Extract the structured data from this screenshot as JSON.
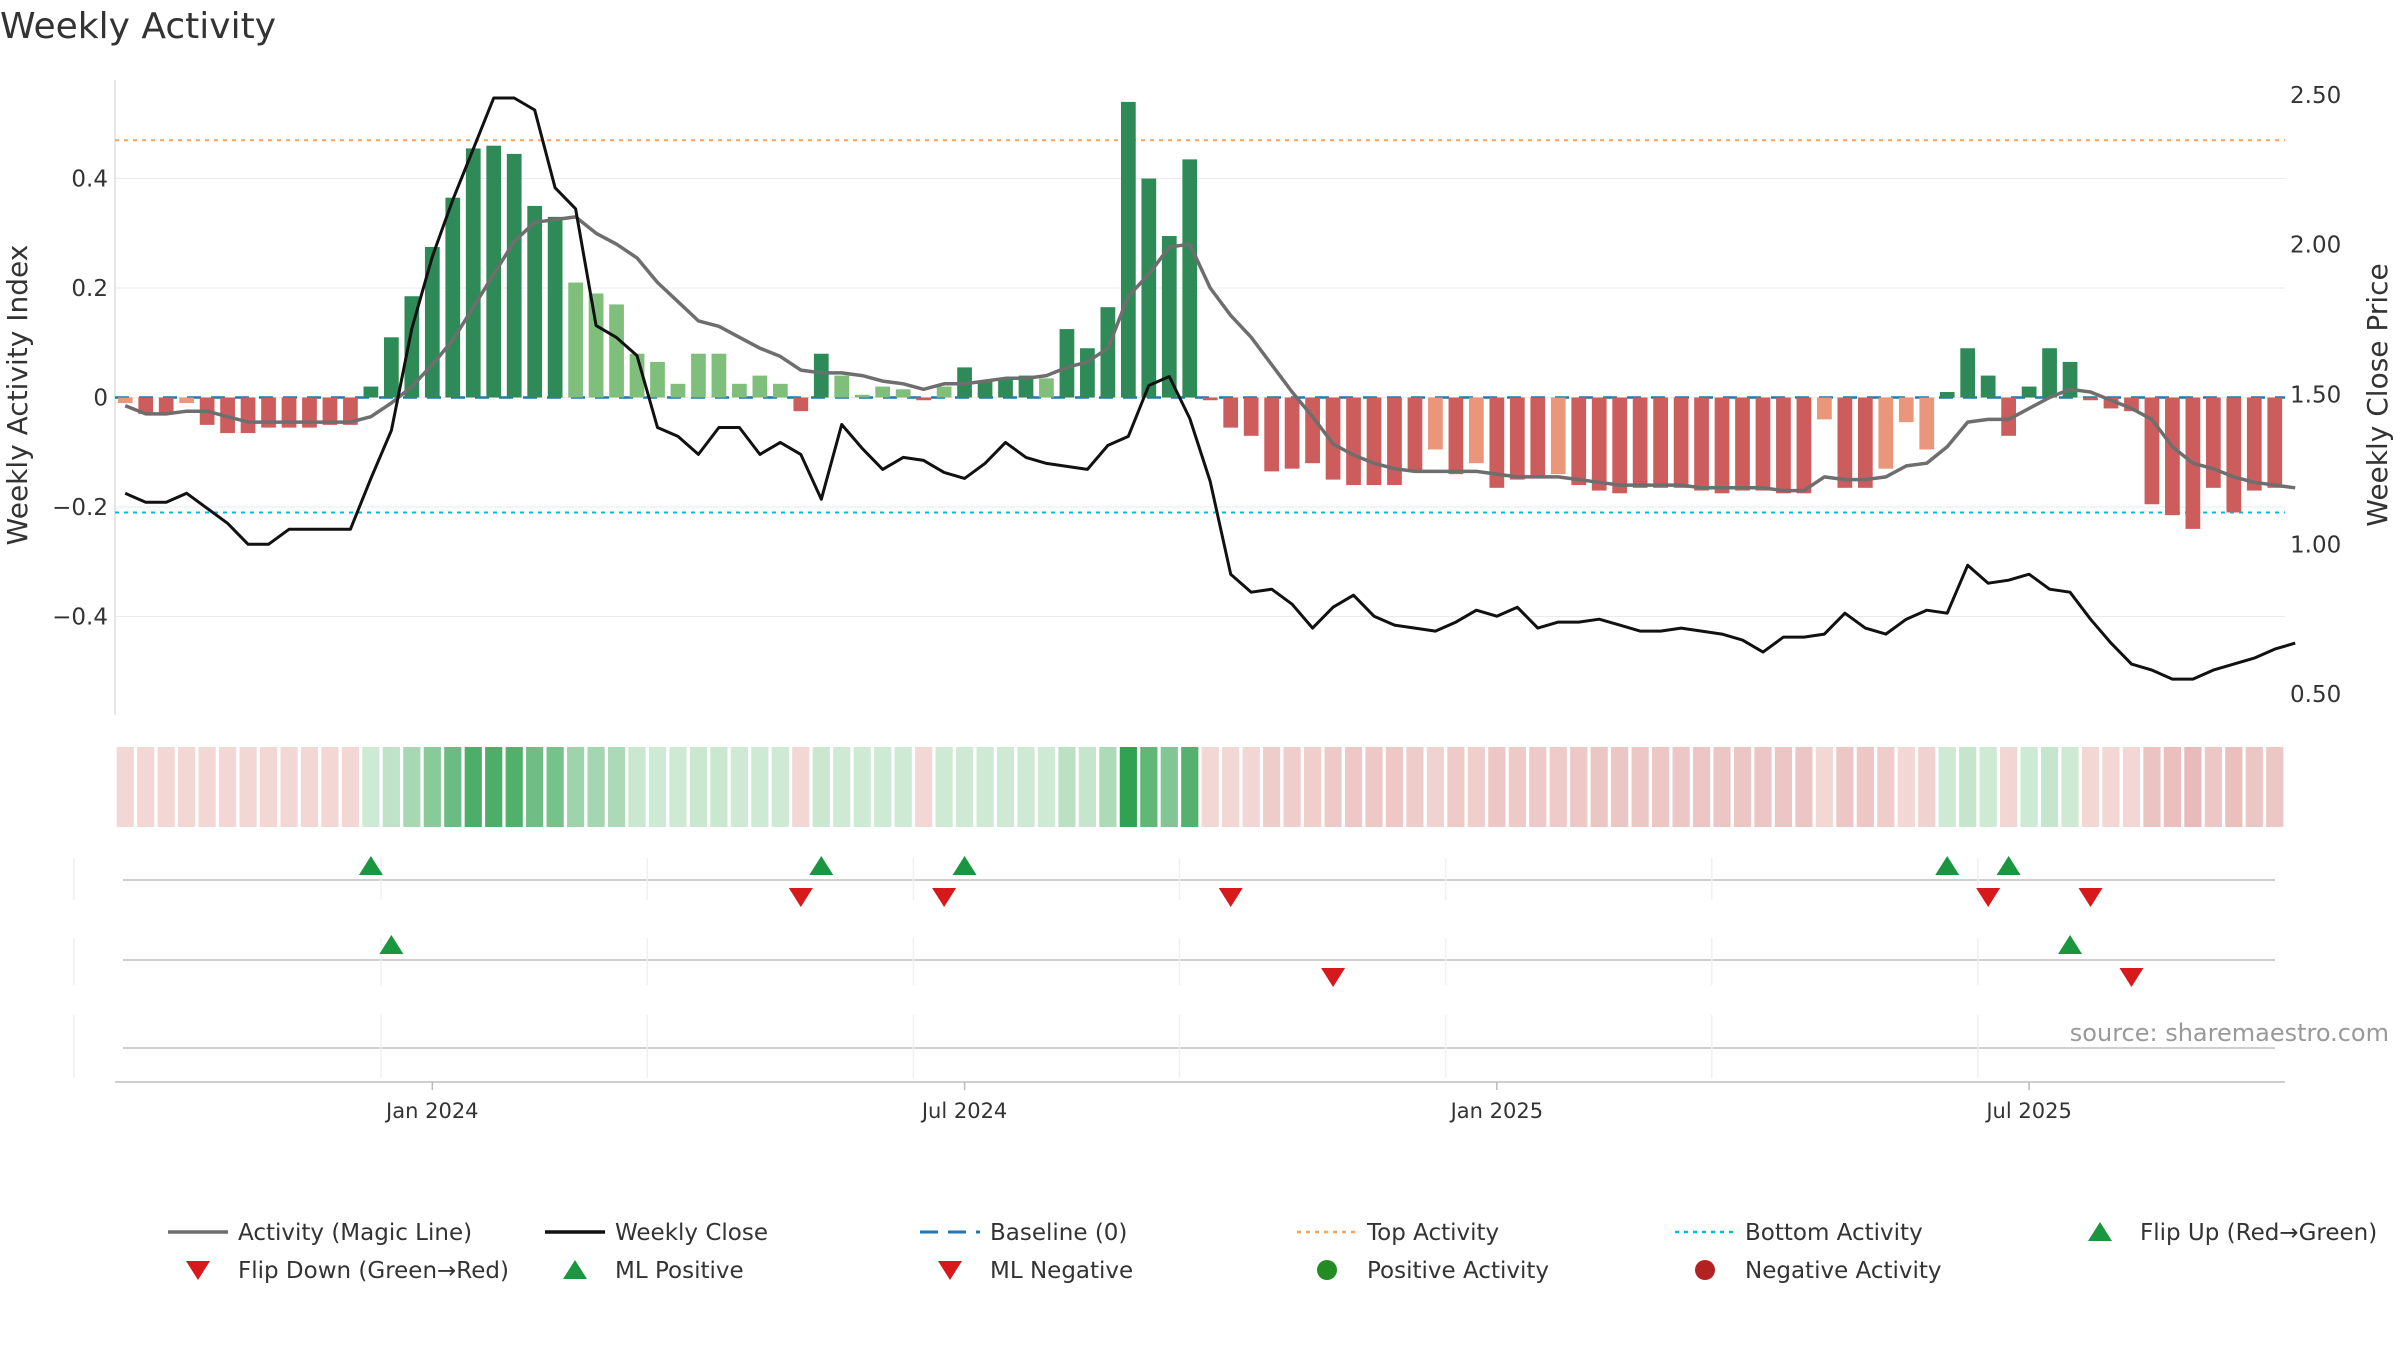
{
  "title": "Weekly Activity",
  "source": "source: sharemaestro.com",
  "colors": {
    "dark_green": "#2e8b57",
    "light_green": "#7fbf7b",
    "dark_red": "#cd5c5c",
    "light_red": "#e9967a",
    "magic_line": "#6e6e6e",
    "close": "#111111",
    "baseline": "#1f77b4",
    "top": "#f4a460",
    "bottom": "#00bcd4",
    "marker_green": "#1a9641",
    "marker_red": "#d7191c"
  },
  "chart_data": {
    "type": "bar",
    "title": "Weekly Activity",
    "ylabel": "Weekly Activity Index",
    "y2label": "Weekly Close Price",
    "ylim": [
      -0.58,
      0.58
    ],
    "y2lim": [
      0.43,
      2.55
    ],
    "yticks": [
      {
        "value": 0.4,
        "label": "0.4"
      },
      {
        "value": 0.2,
        "label": "0.2"
      },
      {
        "value": 0,
        "label": "0"
      },
      {
        "value": -0.2,
        "label": "−0.2"
      },
      {
        "value": -0.4,
        "label": "−0.4"
      }
    ],
    "y2ticks": [
      {
        "value": 2.5,
        "label": "2.50"
      },
      {
        "value": 2.0,
        "label": "2.00"
      },
      {
        "value": 1.5,
        "label": "1.50"
      },
      {
        "value": 1.0,
        "label": "1.00"
      },
      {
        "value": 0.5,
        "label": "0.50"
      }
    ],
    "x_ticks": [
      {
        "week": 15.5,
        "label": "Jan 2024"
      },
      {
        "week": 41.5,
        "label": "Jul 2024"
      },
      {
        "week": 67.5,
        "label": "Jan 2025"
      },
      {
        "week": 93.5,
        "label": "Jul 2025"
      }
    ],
    "top_activity": 0.47,
    "bottom_activity": -0.21,
    "activity": [
      -0.01,
      -0.03,
      -0.03,
      -0.01,
      -0.05,
      -0.065,
      -0.065,
      -0.055,
      -0.055,
      -0.055,
      -0.05,
      -0.05,
      0.02,
      0.11,
      0.185,
      0.275,
      0.365,
      0.455,
      0.46,
      0.445,
      0.35,
      0.33,
      0.21,
      0.19,
      0.17,
      0.08,
      0.065,
      0.025,
      0.08,
      0.08,
      0.025,
      0.04,
      0.025,
      -0.025,
      0.08,
      0.04,
      0.005,
      0.02,
      0.015,
      -0.005,
      0.02,
      0.055,
      0.03,
      0.035,
      0.04,
      0.035,
      0.125,
      0.09,
      0.165,
      0.54,
      0.4,
      0.295,
      0.435,
      -0.005,
      -0.055,
      -0.07,
      -0.135,
      -0.13,
      -0.12,
      -0.15,
      -0.16,
      -0.16,
      -0.16,
      -0.135,
      -0.095,
      -0.14,
      -0.12,
      -0.165,
      -0.15,
      -0.145,
      -0.14,
      -0.16,
      -0.17,
      -0.175,
      -0.165,
      -0.165,
      -0.165,
      -0.17,
      -0.175,
      -0.17,
      -0.17,
      -0.175,
      -0.175,
      -0.04,
      -0.165,
      -0.165,
      -0.13,
      -0.045,
      -0.095,
      0.01,
      0.09,
      0.04,
      -0.07,
      0.02,
      0.09,
      0.065,
      -0.005,
      -0.02,
      -0.025,
      -0.195,
      -0.215,
      -0.24,
      -0.165,
      -0.21,
      -0.17,
      -0.165
    ],
    "magic_line": [
      -0.015,
      -0.03,
      -0.03,
      -0.025,
      -0.025,
      -0.035,
      -0.045,
      -0.045,
      -0.045,
      -0.045,
      -0.045,
      -0.045,
      -0.035,
      -0.01,
      0.02,
      0.06,
      0.105,
      0.165,
      0.225,
      0.285,
      0.32,
      0.325,
      0.33,
      0.3,
      0.28,
      0.255,
      0.21,
      0.175,
      0.14,
      0.13,
      0.11,
      0.09,
      0.075,
      0.05,
      0.045,
      0.045,
      0.04,
      0.03,
      0.025,
      0.015,
      0.025,
      0.025,
      0.03,
      0.035,
      0.035,
      0.04,
      0.055,
      0.065,
      0.09,
      0.185,
      0.225,
      0.275,
      0.28,
      0.2,
      0.15,
      0.11,
      0.06,
      0.01,
      -0.035,
      -0.085,
      -0.105,
      -0.12,
      -0.13,
      -0.135,
      -0.135,
      -0.135,
      -0.135,
      -0.14,
      -0.145,
      -0.145,
      -0.145,
      -0.15,
      -0.155,
      -0.16,
      -0.16,
      -0.16,
      -0.16,
      -0.165,
      -0.165,
      -0.165,
      -0.165,
      -0.17,
      -0.17,
      -0.145,
      -0.15,
      -0.15,
      -0.145,
      -0.125,
      -0.12,
      -0.09,
      -0.045,
      -0.04,
      -0.04,
      -0.02,
      0.0,
      0.015,
      0.01,
      -0.005,
      -0.02,
      -0.04,
      -0.09,
      -0.12,
      -0.13,
      -0.145,
      -0.155,
      -0.16,
      -0.165
    ],
    "weekly_close": [
      1.17,
      1.14,
      1.14,
      1.17,
      1.12,
      1.07,
      1.0,
      1.0,
      1.05,
      1.05,
      1.05,
      1.05,
      1.22,
      1.38,
      1.72,
      1.96,
      2.15,
      2.32,
      2.49,
      2.49,
      2.45,
      2.19,
      2.12,
      1.73,
      1.69,
      1.63,
      1.39,
      1.36,
      1.3,
      1.39,
      1.39,
      1.3,
      1.34,
      1.3,
      1.15,
      1.4,
      1.32,
      1.25,
      1.29,
      1.28,
      1.24,
      1.22,
      1.27,
      1.34,
      1.29,
      1.27,
      1.26,
      1.25,
      1.33,
      1.36,
      1.53,
      1.56,
      1.42,
      1.21,
      0.9,
      0.84,
      0.85,
      0.8,
      0.72,
      0.79,
      0.83,
      0.76,
      0.73,
      0.72,
      0.71,
      0.74,
      0.78,
      0.76,
      0.79,
      0.72,
      0.74,
      0.74,
      0.75,
      0.73,
      0.71,
      0.71,
      0.72,
      0.71,
      0.7,
      0.68,
      0.64,
      0.69,
      0.69,
      0.7,
      0.77,
      0.72,
      0.7,
      0.75,
      0.78,
      0.77,
      0.93,
      0.87,
      0.88,
      0.9,
      0.85,
      0.84,
      0.75,
      0.67,
      0.6,
      0.58,
      0.55,
      0.55,
      0.58,
      0.6,
      0.62,
      0.65,
      0.67
    ],
    "signals": {
      "flip_up": [
        12,
        34,
        41,
        89,
        92
      ],
      "flip_down": [
        33,
        40,
        54,
        91,
        96
      ],
      "ml_positive": [
        13,
        95
      ],
      "ml_negative": [
        59,
        98
      ]
    }
  },
  "legend": [
    {
      "label": "Activity (Magic Line)",
      "symbol": "line",
      "color": "#6e6e6e"
    },
    {
      "label": "Weekly Close",
      "symbol": "line",
      "color": "#111111"
    },
    {
      "label": "Baseline (0)",
      "symbol": "dashed",
      "color": "#1f77b4"
    },
    {
      "label": "Top Activity",
      "symbol": "dotted",
      "color": "#f4a460"
    },
    {
      "label": "Bottom Activity",
      "symbol": "dotted",
      "color": "#00bcd4"
    },
    {
      "label": "Flip Up (Red→Green)",
      "symbol": "triangle-up",
      "color": "#1a9641"
    },
    {
      "label": "Flip Down (Green→Red)",
      "symbol": "triangle-down",
      "color": "#d7191c"
    },
    {
      "label": "ML Positive",
      "symbol": "triangle-up",
      "color": "#1a9641"
    },
    {
      "label": "ML Negative",
      "symbol": "triangle-down",
      "color": "#d7191c"
    },
    {
      "label": "Positive Activity",
      "symbol": "circle",
      "color": "#228b22"
    },
    {
      "label": "Negative Activity",
      "symbol": "circle",
      "color": "#b22222"
    }
  ]
}
